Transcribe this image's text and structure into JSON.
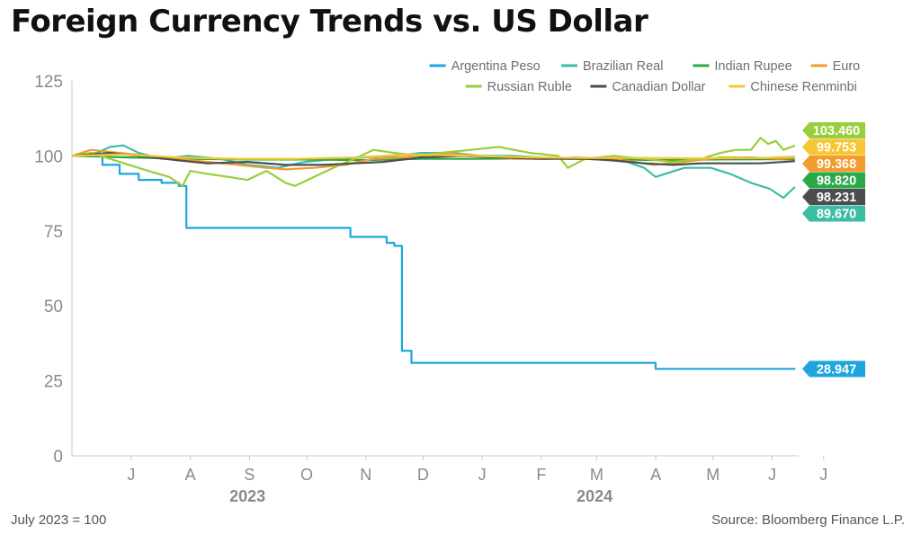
{
  "chart_data": {
    "type": "line",
    "title": "Foreign Currency Trends vs. US Dollar",
    "note": "July 2023 = 100",
    "source": "Source: Bloomberg Finance L.P.",
    "ylim": [
      0,
      125
    ],
    "yticks": [
      0,
      25,
      50,
      75,
      100,
      125
    ],
    "xlim": [
      "2023-06-15",
      "2024-06-30"
    ],
    "month_ticks": [
      {
        "label": "J",
        "date": "2023-07-01"
      },
      {
        "label": "A",
        "date": "2023-08-01"
      },
      {
        "label": "S",
        "date": "2023-09-01"
      },
      {
        "label": "O",
        "date": "2023-10-01"
      },
      {
        "label": "N",
        "date": "2023-11-01"
      },
      {
        "label": "D",
        "date": "2023-12-01"
      },
      {
        "label": "J",
        "date": "2024-01-01"
      },
      {
        "label": "F",
        "date": "2024-02-01"
      },
      {
        "label": "M",
        "date": "2024-03-01"
      },
      {
        "label": "A",
        "date": "2024-04-01"
      },
      {
        "label": "M",
        "date": "2024-05-01"
      },
      {
        "label": "J",
        "date": "2024-06-01"
      },
      {
        "label": "J",
        "date": "2024-06-28"
      }
    ],
    "year_labels": [
      {
        "label": "2023",
        "date": "2023-09-15"
      },
      {
        "label": "2024",
        "date": "2024-03-15"
      }
    ],
    "legend_position": "top-right",
    "series": [
      {
        "name": "Argentina Peso",
        "color": "#1ea6dc",
        "end_label": "28.947",
        "step": true,
        "points": [
          [
            "2023-06-15",
            100
          ],
          [
            "2023-07-01",
            97
          ],
          [
            "2023-07-10",
            94
          ],
          [
            "2023-07-20",
            92
          ],
          [
            "2023-08-01",
            91
          ],
          [
            "2023-08-10",
            90
          ],
          [
            "2023-08-14",
            76
          ],
          [
            "2023-09-15",
            76
          ],
          [
            "2023-10-15",
            76
          ],
          [
            "2023-11-01",
            76
          ],
          [
            "2023-11-08",
            73
          ],
          [
            "2023-11-20",
            73
          ],
          [
            "2023-11-27",
            71
          ],
          [
            "2023-12-01",
            70
          ],
          [
            "2023-12-05",
            35
          ],
          [
            "2023-12-10",
            31
          ],
          [
            "2024-01-15",
            31
          ],
          [
            "2024-02-15",
            31
          ],
          [
            "2024-03-15",
            31
          ],
          [
            "2024-04-10",
            31
          ],
          [
            "2024-04-16",
            29
          ],
          [
            "2024-05-15",
            29
          ],
          [
            "2024-06-15",
            29
          ],
          [
            "2024-06-28",
            28.947
          ]
        ]
      },
      {
        "name": "Brazilian Real",
        "color": "#3dbda5",
        "end_label": "89.670",
        "points": [
          [
            "2023-06-15",
            100
          ],
          [
            "2023-06-28",
            101
          ],
          [
            "2023-07-05",
            103
          ],
          [
            "2023-07-12",
            103.5
          ],
          [
            "2023-07-20",
            101
          ],
          [
            "2023-08-01",
            99
          ],
          [
            "2023-08-15",
            100
          ],
          [
            "2023-09-01",
            99
          ],
          [
            "2023-09-15",
            97
          ],
          [
            "2023-10-01",
            96
          ],
          [
            "2023-10-15",
            98
          ],
          [
            "2023-11-01",
            99
          ],
          [
            "2023-11-15",
            99.5
          ],
          [
            "2023-12-01",
            100
          ],
          [
            "2023-12-15",
            101
          ],
          [
            "2024-01-01",
            101
          ],
          [
            "2024-01-15",
            100
          ],
          [
            "2024-02-01",
            100
          ],
          [
            "2024-02-15",
            99.5
          ],
          [
            "2024-03-01",
            99
          ],
          [
            "2024-03-15",
            99
          ],
          [
            "2024-04-01",
            98
          ],
          [
            "2024-04-10",
            96
          ],
          [
            "2024-04-16",
            93
          ],
          [
            "2024-05-01",
            96
          ],
          [
            "2024-05-15",
            96
          ],
          [
            "2024-05-25",
            94
          ],
          [
            "2024-06-05",
            91
          ],
          [
            "2024-06-15",
            89
          ],
          [
            "2024-06-22",
            86
          ],
          [
            "2024-06-28",
            89.67
          ]
        ]
      },
      {
        "name": "Indian Rupee",
        "color": "#2aa84a",
        "end_label": "98.820",
        "points": [
          [
            "2023-06-15",
            100
          ],
          [
            "2023-07-15",
            99.5
          ],
          [
            "2023-08-15",
            99
          ],
          [
            "2023-09-15",
            98.8
          ],
          [
            "2023-10-15",
            98.8
          ],
          [
            "2023-11-15",
            98.6
          ],
          [
            "2023-12-15",
            99
          ],
          [
            "2024-01-15",
            99
          ],
          [
            "2024-02-15",
            99.2
          ],
          [
            "2024-03-15",
            99
          ],
          [
            "2024-04-15",
            98.6
          ],
          [
            "2024-05-15",
            98.8
          ],
          [
            "2024-06-15",
            98.9
          ],
          [
            "2024-06-28",
            98.82
          ]
        ]
      },
      {
        "name": "Euro",
        "color": "#f29b2f",
        "end_label": "99.368",
        "points": [
          [
            "2023-06-15",
            100
          ],
          [
            "2023-06-25",
            102
          ],
          [
            "2023-07-10",
            101
          ],
          [
            "2023-07-25",
            100
          ],
          [
            "2023-08-10",
            99
          ],
          [
            "2023-08-25",
            98
          ],
          [
            "2023-09-10",
            97
          ],
          [
            "2023-09-25",
            96
          ],
          [
            "2023-10-05",
            95.5
          ],
          [
            "2023-10-20",
            96
          ],
          [
            "2023-11-05",
            97
          ],
          [
            "2023-11-20",
            99
          ],
          [
            "2023-12-05",
            99.5
          ],
          [
            "2023-12-25",
            101
          ],
          [
            "2024-01-15",
            100
          ],
          [
            "2024-02-01",
            99
          ],
          [
            "2024-02-20",
            99
          ],
          [
            "2024-03-05",
            99.5
          ],
          [
            "2024-03-25",
            99
          ],
          [
            "2024-04-15",
            97
          ],
          [
            "2024-05-01",
            98
          ],
          [
            "2024-05-20",
            99.5
          ],
          [
            "2024-06-05",
            99.5
          ],
          [
            "2024-06-20",
            99
          ],
          [
            "2024-06-28",
            99.368
          ]
        ]
      },
      {
        "name": "Russian Ruble",
        "color": "#9acd3c",
        "end_label": "103.460",
        "points": [
          [
            "2023-06-15",
            100
          ],
          [
            "2023-06-25",
            101
          ],
          [
            "2023-07-05",
            99
          ],
          [
            "2023-07-15",
            97
          ],
          [
            "2023-07-25",
            95
          ],
          [
            "2023-08-05",
            93
          ],
          [
            "2023-08-12",
            90
          ],
          [
            "2023-08-16",
            95
          ],
          [
            "2023-08-25",
            94
          ],
          [
            "2023-09-05",
            93
          ],
          [
            "2023-09-15",
            92
          ],
          [
            "2023-09-25",
            95
          ],
          [
            "2023-10-05",
            91
          ],
          [
            "2023-10-10",
            90
          ],
          [
            "2023-10-20",
            93
          ],
          [
            "2023-10-30",
            96
          ],
          [
            "2023-11-10",
            99
          ],
          [
            "2023-11-20",
            102
          ],
          [
            "2023-12-01",
            101
          ],
          [
            "2023-12-15",
            100
          ],
          [
            "2023-12-25",
            101
          ],
          [
            "2024-01-10",
            102
          ],
          [
            "2024-01-25",
            103
          ],
          [
            "2024-02-10",
            101
          ],
          [
            "2024-02-25",
            100
          ],
          [
            "2024-03-01",
            96
          ],
          [
            "2024-03-10",
            99
          ],
          [
            "2024-03-25",
            100
          ],
          [
            "2024-04-10",
            99
          ],
          [
            "2024-04-25",
            98
          ],
          [
            "2024-05-10",
            99
          ],
          [
            "2024-05-20",
            101
          ],
          [
            "2024-05-28",
            102
          ],
          [
            "2024-06-05",
            102
          ],
          [
            "2024-06-10",
            106
          ],
          [
            "2024-06-14",
            104
          ],
          [
            "2024-06-18",
            105
          ],
          [
            "2024-06-22",
            102
          ],
          [
            "2024-06-28",
            103.46
          ]
        ]
      },
      {
        "name": "Canadian Dollar",
        "color": "#4d4d4d",
        "end_label": "98.231",
        "points": [
          [
            "2023-06-15",
            100
          ],
          [
            "2023-07-05",
            101
          ],
          [
            "2023-07-20",
            100
          ],
          [
            "2023-08-10",
            98.5
          ],
          [
            "2023-08-25",
            97.5
          ],
          [
            "2023-09-15",
            98
          ],
          [
            "2023-10-05",
            97
          ],
          [
            "2023-10-25",
            97
          ],
          [
            "2023-11-10",
            97.5
          ],
          [
            "2023-11-25",
            98
          ],
          [
            "2023-12-15",
            99.5
          ],
          [
            "2024-01-05",
            100
          ],
          [
            "2024-01-25",
            99.5
          ],
          [
            "2024-02-15",
            99
          ],
          [
            "2024-03-10",
            99
          ],
          [
            "2024-03-25",
            98.5
          ],
          [
            "2024-04-10",
            97.5
          ],
          [
            "2024-04-25",
            97
          ],
          [
            "2024-05-10",
            97.5
          ],
          [
            "2024-05-25",
            97.5
          ],
          [
            "2024-06-10",
            97.5
          ],
          [
            "2024-06-28",
            98.231
          ]
        ]
      },
      {
        "name": "Chinese Renminbi",
        "color": "#f5c733",
        "end_label": "99.753",
        "points": [
          [
            "2023-06-15",
            100
          ],
          [
            "2023-07-10",
            100.5
          ],
          [
            "2023-08-10",
            99.5
          ],
          [
            "2023-09-10",
            99
          ],
          [
            "2023-10-10",
            99
          ],
          [
            "2023-11-10",
            99.5
          ],
          [
            "2023-12-10",
            100.5
          ],
          [
            "2024-01-10",
            100
          ],
          [
            "2024-02-10",
            99.5
          ],
          [
            "2024-03-10",
            99.3
          ],
          [
            "2024-04-10",
            99.3
          ],
          [
            "2024-05-10",
            99.2
          ],
          [
            "2024-06-10",
            99.3
          ],
          [
            "2024-06-28",
            99.753
          ]
        ]
      }
    ]
  }
}
